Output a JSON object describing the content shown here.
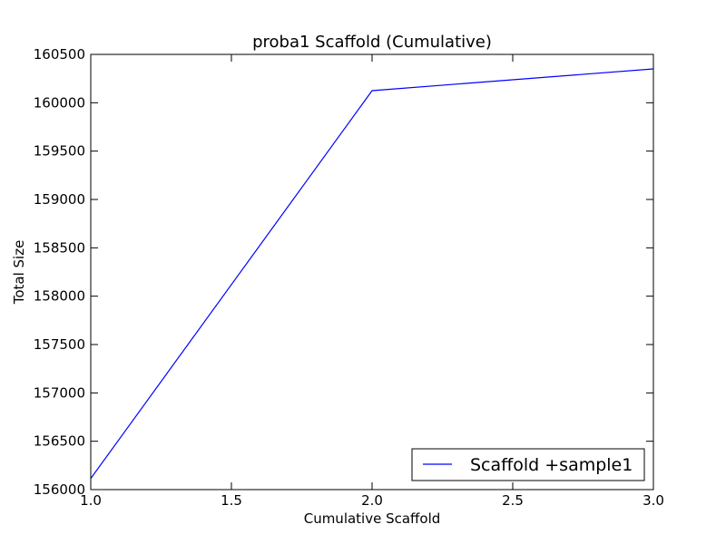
{
  "chart_data": {
    "type": "line",
    "title": "proba1 Scaffold (Cumulative)",
    "xlabel": "Cumulative Scaffold",
    "ylabel": "Total Size",
    "xlim": [
      1.0,
      3.0
    ],
    "ylim": [
      156000,
      160500
    ],
    "xticks": [
      "1.0",
      "1.5",
      "2.0",
      "2.5",
      "3.0"
    ],
    "yticks": [
      "156000",
      "156500",
      "157000",
      "157500",
      "158000",
      "158500",
      "159000",
      "159500",
      "160000",
      "160500"
    ],
    "grid": false,
    "legend_position": "lower right",
    "series": [
      {
        "name": "Scaffold +sample1",
        "color": "#0000ff",
        "x": [
          1,
          2,
          3
        ],
        "y": [
          156115,
          160125,
          160350
        ]
      }
    ]
  }
}
